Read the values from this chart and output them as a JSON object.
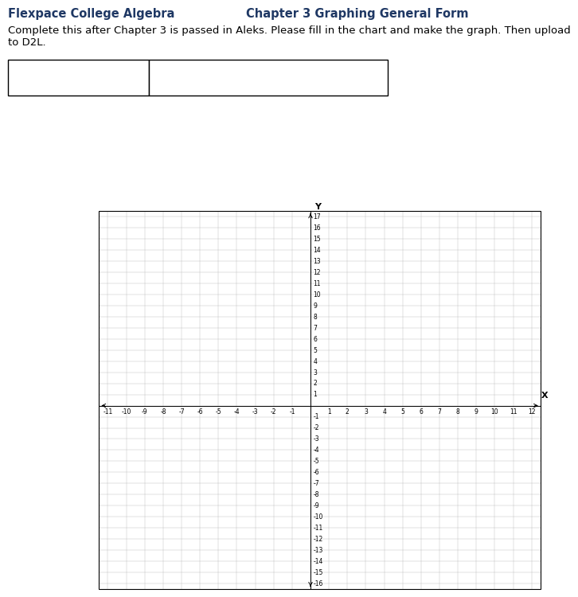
{
  "title_left": "Flexpace College Algebra",
  "title_right": "Chapter 3 Graphing General Form",
  "subtitle": "Complete this after Chapter 3 is passed in Aleks. Please fill in the chart and make the graph. Then upload\nto D2L.",
  "title_color": "#1f3864",
  "title_fontsize": 10.5,
  "subtitle_fontsize": 9.5,
  "x_min": -11,
  "x_max": 12,
  "y_min": -16,
  "y_max": 17,
  "x_label": "X",
  "y_label": "Y",
  "grid_color": "#bbbbbb",
  "axis_color": "#000000",
  "label_fontsize": 5.5,
  "background_color": "#ffffff"
}
